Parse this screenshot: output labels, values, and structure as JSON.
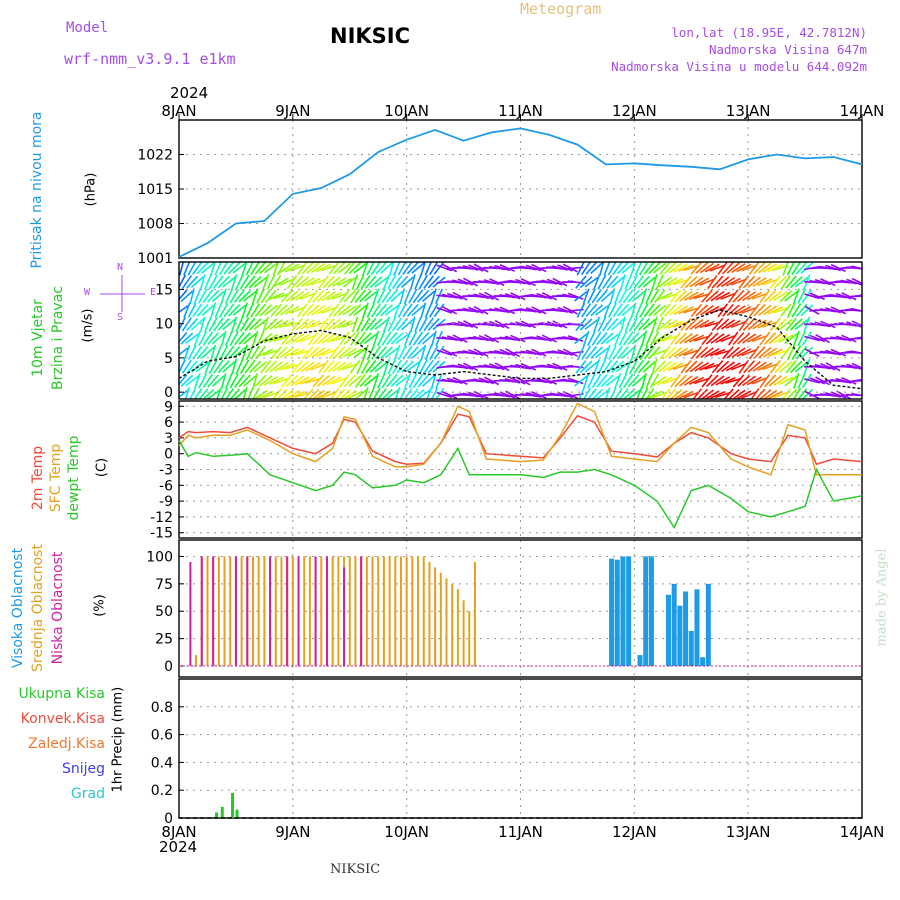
{
  "header": {
    "model_label": "Model",
    "model_name": "wrf-nmm_v3.9.1 e1km",
    "station": "NIKSIC",
    "meteogram": "Meteogram",
    "lonlat": "lon,lat (18.95E, 42.7812N)",
    "altitude": "Nadmorska Visina 647m",
    "model_altitude": "Nadmorska Visina u modelu 644.092m",
    "year_top": "2024",
    "year_bottom": "2024",
    "footer_station": "NIKSIC",
    "credit": "made by Angel"
  },
  "colors": {
    "pressure": "#1e9be6",
    "temp2m": "#f04a3a",
    "sfc": "#e6a020",
    "dew": "#28c828",
    "high_cloud": "#1e9be6",
    "mid_cloud": "#e6a020",
    "low_cloud": "#d01fa0",
    "label_purple": "#a64de6"
  },
  "chart_data": [
    {
      "type": "line",
      "panel": "pressure",
      "ylabel_main": "Pritisak na nivou mora",
      "ylabel_unit": "(hPa)",
      "x_ticks": [
        "8JAN",
        "9JAN",
        "10JAN",
        "11JAN",
        "12JAN",
        "13JAN",
        "14JAN"
      ],
      "yticks": [
        1001,
        1008,
        1015,
        1022
      ],
      "ylim": [
        1001,
        1029
      ],
      "grid": true,
      "series": [
        {
          "x": [
            0,
            0.25,
            0.5,
            0.75,
            1.0,
            1.25,
            1.5,
            1.75,
            2.0,
            2.25,
            2.5,
            2.75,
            3.0,
            3.25,
            3.5,
            3.75,
            4.0,
            4.25,
            4.5,
            4.75,
            5.0,
            5.25,
            5.5,
            5.75,
            6.0
          ],
          "y": [
            1001.2,
            1004,
            1008,
            1008.5,
            1014,
            1015.2,
            1018,
            1022.5,
            1025,
            1027,
            1024.8,
            1026.5,
            1027.3,
            1026,
            1024,
            1020,
            1020.2,
            1019.8,
            1019.5,
            1019,
            1021,
            1022,
            1021.2,
            1021.5,
            1020
          ]
        }
      ]
    },
    {
      "type": "line",
      "panel": "wind",
      "ylabel_main": "10m Vjetar",
      "ylabel_main2": "Brzina i Pravac",
      "ylabel_unit": "(m/s)",
      "compass": {
        "w": "W",
        "e": "E",
        "n": "N",
        "s": "S"
      },
      "yticks": [
        0,
        5,
        10,
        15
      ],
      "ylim": [
        -1,
        19
      ],
      "grid": true,
      "series": [
        {
          "name": "wind speed",
          "x": [
            0,
            0.25,
            0.5,
            0.75,
            1.0,
            1.25,
            1.5,
            1.75,
            2.0,
            2.25,
            2.5,
            2.75,
            3.0,
            3.25,
            3.5,
            3.75,
            4.0,
            4.25,
            4.5,
            4.75,
            5.0,
            5.25,
            5.5,
            5.75,
            6.0
          ],
          "y": [
            2,
            4.5,
            5.2,
            7.5,
            8.5,
            9,
            8,
            5,
            3,
            2.5,
            3,
            2.5,
            2,
            2,
            2.5,
            3,
            4.5,
            8,
            10.5,
            12,
            11,
            9.5,
            4.5,
            1,
            0.5
          ]
        }
      ]
    },
    {
      "type": "line",
      "panel": "temperature",
      "ylabel_main": "2m Temp",
      "ylabel_main2": "SFC Temp",
      "ylabel_main3": "dewpt Temp",
      "ylabel_unit": "(C)",
      "yticks": [
        -15,
        -12,
        -9,
        -6,
        -3,
        0,
        3,
        6,
        9
      ],
      "ylim": [
        -16,
        10
      ],
      "grid": true,
      "x": [
        0,
        0.08,
        0.15,
        0.3,
        0.45,
        0.6,
        0.8,
        1.0,
        1.2,
        1.35,
        1.45,
        1.55,
        1.7,
        1.9,
        2.0,
        2.15,
        2.3,
        2.45,
        2.55,
        2.7,
        3.0,
        3.2,
        3.35,
        3.5,
        3.65,
        3.8,
        4.0,
        4.2,
        4.35,
        4.5,
        4.65,
        4.85,
        5.0,
        5.2,
        5.35,
        5.5,
        5.6,
        5.75,
        6.0
      ],
      "series": [
        {
          "name": "2m Temp",
          "y": [
            3,
            4.2,
            4,
            4.2,
            4,
            5,
            3,
            1,
            0,
            2,
            6.5,
            6,
            0.5,
            -1.5,
            -2,
            -1.8,
            2,
            7.5,
            7,
            0,
            -0.5,
            -0.8,
            3,
            7.2,
            6,
            0.5,
            0,
            -0.6,
            2,
            4,
            3,
            0,
            -1,
            -1.5,
            3.5,
            3,
            -2,
            -1,
            -1.5
          ]
        },
        {
          "name": "SFC Temp",
          "y": [
            1.5,
            3.5,
            3,
            3.5,
            3.5,
            4.5,
            2.5,
            0,
            -1.5,
            1,
            7,
            6.5,
            -0.5,
            -2.5,
            -2.5,
            -2,
            2,
            9,
            8,
            -1,
            -1.5,
            -1.2,
            3.5,
            9.5,
            8,
            -0.5,
            -1,
            -1.5,
            2,
            5,
            4,
            -1,
            -2.5,
            -4,
            5.5,
            4.5,
            -4,
            -4,
            -4
          ]
        },
        {
          "name": "dewpt Temp",
          "y": [
            2.5,
            -0.5,
            0.2,
            -0.5,
            -0.3,
            0,
            -4,
            -5.5,
            -7,
            -6,
            -3.5,
            -4,
            -6.5,
            -6,
            -5,
            -5.5,
            -4,
            1,
            -4,
            -4,
            -4,
            -4.5,
            -3.5,
            -3.5,
            -3,
            -4,
            -6,
            -9,
            -14,
            -7,
            -6,
            -8.5,
            -11,
            -12,
            -11,
            -10,
            -3,
            -9,
            -8
          ]
        }
      ]
    },
    {
      "type": "bar",
      "panel": "cloud cover",
      "ylabel_main": "Visoka Oblacnost",
      "ylabel_main2": "Srednja Oblacnost",
      "ylabel_main3": "Niska Oblacnost",
      "ylabel_unit": "(%)",
      "yticks": [
        0,
        25,
        50,
        75,
        100
      ],
      "ylim": [
        0,
        100
      ],
      "grid": true,
      "series": [
        {
          "name": "Srednja Oblacnost",
          "x": [
            0.15,
            0.2,
            0.25,
            0.3,
            0.35,
            0.4,
            0.45,
            0.5,
            0.55,
            0.6,
            0.65,
            0.7,
            0.75,
            0.8,
            0.85,
            0.9,
            0.95,
            1.0,
            1.05,
            1.1,
            1.15,
            1.2,
            1.25,
            1.3,
            1.35,
            1.4,
            1.45,
            1.5,
            1.55,
            1.6,
            1.65,
            1.7,
            1.75,
            1.8,
            1.85,
            1.9,
            1.95,
            2.0,
            2.05,
            2.1,
            2.15,
            2.2,
            2.25,
            2.3,
            2.35,
            2.4,
            2.45,
            2.5,
            2.55,
            2.6
          ],
          "values": [
            10,
            100,
            100,
            100,
            100,
            100,
            100,
            100,
            100,
            100,
            100,
            100,
            100,
            100,
            100,
            100,
            100,
            100,
            100,
            100,
            100,
            100,
            100,
            100,
            100,
            100,
            100,
            100,
            100,
            100,
            100,
            100,
            100,
            100,
            100,
            100,
            100,
            100,
            100,
            100,
            100,
            95,
            90,
            85,
            80,
            75,
            70,
            60,
            50,
            95
          ]
        },
        {
          "name": "Niska Oblacnost",
          "x": [
            0.1,
            0.2,
            0.3,
            0.5,
            0.6,
            0.8,
            0.95,
            1.05,
            1.2,
            1.3,
            1.45,
            1.6
          ],
          "values": [
            95,
            100,
            100,
            100,
            100,
            100,
            100,
            100,
            100,
            100,
            90,
            100
          ]
        },
        {
          "name": "Visoka Oblacnost",
          "x": [
            3.8,
            3.85,
            3.9,
            3.95,
            4.05,
            4.1,
            4.15,
            4.3,
            4.35,
            4.4,
            4.45,
            4.5,
            4.55,
            4.6,
            4.65
          ],
          "values": [
            98,
            97,
            100,
            100,
            10,
            100,
            100,
            65,
            75,
            55,
            68,
            32,
            70,
            8,
            75
          ]
        }
      ]
    },
    {
      "type": "bar",
      "panel": "precipitation",
      "ylabel_main": "1hr Precip",
      "ylabel_unit": "(mm)",
      "legend": [
        "Ukupna Kisa",
        "Konvek.Kisa",
        "Zaledj.Kisa",
        "Snijeg",
        "Grad"
      ],
      "x_ticks": [
        "8JAN",
        "9JAN",
        "10JAN",
        "11JAN",
        "12JAN",
        "13JAN",
        "14JAN"
      ],
      "yticks": [
        0,
        0.2,
        0.4,
        0.6,
        0.8
      ],
      "ylim": [
        0,
        1
      ],
      "grid": true,
      "series": [
        {
          "name": "Ukupna Kisa",
          "x": [
            0.33,
            0.38,
            0.47,
            0.51
          ],
          "values": [
            0.04,
            0.08,
            0.18,
            0.06
          ]
        }
      ]
    }
  ]
}
